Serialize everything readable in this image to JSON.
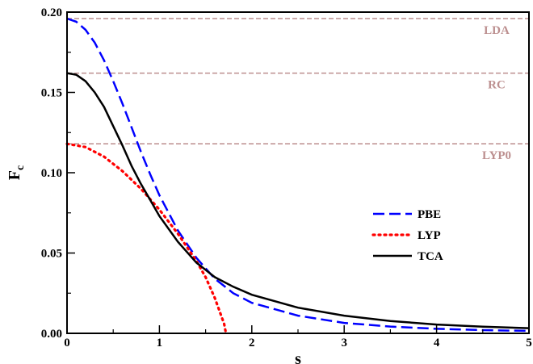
{
  "chart_data": {
    "type": "line",
    "xlabel": "s",
    "ylabel_main": "F",
    "ylabel_sub": "c",
    "xlim": [
      0,
      5
    ],
    "ylim": [
      0,
      0.2
    ],
    "x_ticks": [
      "0",
      "1",
      "2",
      "3",
      "4",
      "5"
    ],
    "y_ticks": [
      "0.00",
      "0.05",
      "0.10",
      "0.15",
      "0.20"
    ],
    "grid": false,
    "legend_position": "center-right",
    "reference_lines": [
      {
        "name": "LDA",
        "y": 0.196,
        "color": "#bc8f8f"
      },
      {
        "name": "RC",
        "y": 0.162,
        "color": "#bc8f8f"
      },
      {
        "name": "LYP0",
        "y": 0.118,
        "color": "#bc8f8f"
      }
    ],
    "series": [
      {
        "name": "PBE",
        "style": "dashed",
        "color": "#0000ff",
        "points": [
          [
            0,
            0.196
          ],
          [
            0.1,
            0.194
          ],
          [
            0.2,
            0.189
          ],
          [
            0.3,
            0.181
          ],
          [
            0.4,
            0.17
          ],
          [
            0.5,
            0.157
          ],
          [
            0.6,
            0.143
          ],
          [
            0.7,
            0.128
          ],
          [
            0.8,
            0.113
          ],
          [
            0.9,
            0.099
          ],
          [
            1.0,
            0.086
          ],
          [
            1.2,
            0.064
          ],
          [
            1.4,
            0.047
          ],
          [
            1.6,
            0.034
          ],
          [
            1.8,
            0.025
          ],
          [
            2.0,
            0.019
          ],
          [
            2.5,
            0.011
          ],
          [
            3.0,
            0.0065
          ],
          [
            3.5,
            0.0042
          ],
          [
            4.0,
            0.0028
          ],
          [
            4.5,
            0.002
          ],
          [
            5.0,
            0.0015
          ]
        ]
      },
      {
        "name": "LYP",
        "style": "dotted",
        "color": "#ff0000",
        "points": [
          [
            0,
            0.118
          ],
          [
            0.2,
            0.116
          ],
          [
            0.4,
            0.11
          ],
          [
            0.6,
            0.101
          ],
          [
            0.8,
            0.09
          ],
          [
            1.0,
            0.077
          ],
          [
            1.2,
            0.062
          ],
          [
            1.4,
            0.045
          ],
          [
            1.5,
            0.035
          ],
          [
            1.6,
            0.022
          ],
          [
            1.7,
            0.006
          ],
          [
            1.72,
            0.0
          ]
        ]
      },
      {
        "name": "TCA",
        "style": "solid",
        "color": "#000000",
        "points": [
          [
            0,
            0.162
          ],
          [
            0.1,
            0.161
          ],
          [
            0.2,
            0.157
          ],
          [
            0.3,
            0.15
          ],
          [
            0.4,
            0.141
          ],
          [
            0.5,
            0.129
          ],
          [
            0.6,
            0.117
          ],
          [
            0.7,
            0.104
          ],
          [
            0.8,
            0.093
          ],
          [
            0.9,
            0.083
          ],
          [
            1.0,
            0.073
          ],
          [
            1.2,
            0.057
          ],
          [
            1.4,
            0.044
          ],
          [
            1.6,
            0.035
          ],
          [
            1.8,
            0.029
          ],
          [
            2.0,
            0.024
          ],
          [
            2.5,
            0.016
          ],
          [
            3.0,
            0.011
          ],
          [
            3.5,
            0.0077
          ],
          [
            4.0,
            0.0055
          ],
          [
            4.5,
            0.0041
          ],
          [
            5.0,
            0.0032
          ]
        ]
      }
    ]
  }
}
